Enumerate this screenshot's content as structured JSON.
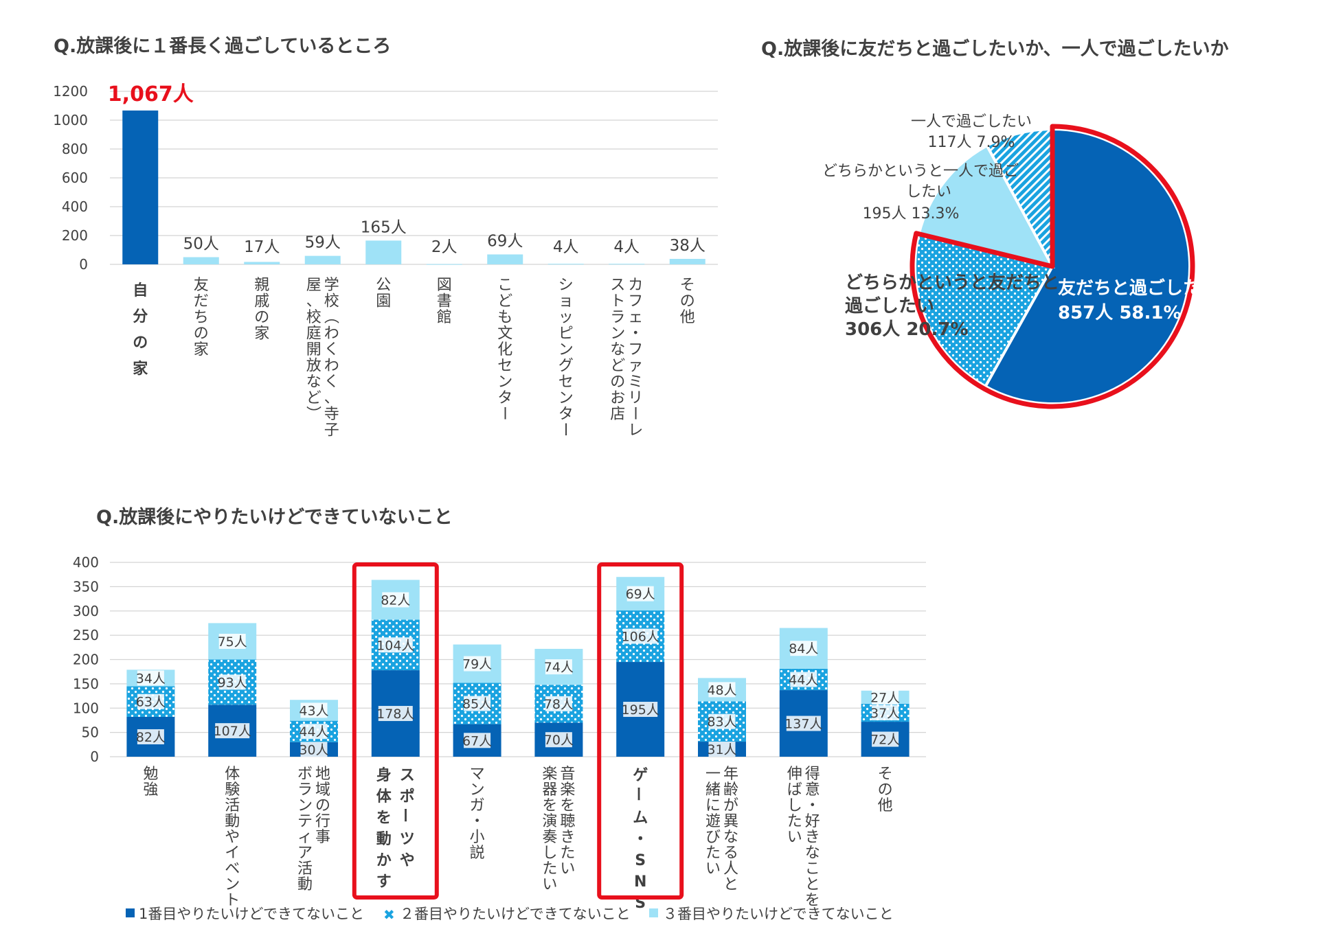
{
  "colors": {
    "dark_blue": "#0563b5",
    "mid_blue": "#1aa3e0",
    "light_blue": "#9fe2f7",
    "highlight_red": "#e8101c",
    "grid": "#d4d4d4",
    "text": "#404040"
  },
  "chart_data": [
    {
      "id": "where",
      "type": "bar",
      "title": "Q.放課後に１番長く過ごしているところ",
      "ylim": [
        0,
        1200
      ],
      "yticks": [
        0,
        200,
        400,
        600,
        800,
        1000,
        1200
      ],
      "categories": [
        "自分の家",
        "友だちの家",
        "親戚の家",
        "学校（わくわく、寺子屋、校庭開放など）",
        "公園",
        "図書館",
        "こども文化センター",
        "ショッピングセンター",
        "カフェ・ファミリーレストランなどのお店",
        "その他"
      ],
      "category_lines": [
        [
          "自分の家"
        ],
        [
          "友だちの家"
        ],
        [
          "親戚の家"
        ],
        [
          "学校（わくわく、寺子",
          "屋、校庭開放など）"
        ],
        [
          "公園"
        ],
        [
          "図書館"
        ],
        [
          "こども文化センター"
        ],
        [
          "ショッピングセンター"
        ],
        [
          "カフェ・ファミリーレ",
          "ストランなどのお店"
        ],
        [
          "その他"
        ]
      ],
      "values": [
        1067,
        50,
        17,
        59,
        165,
        2,
        69,
        4,
        4,
        38
      ],
      "labels": [
        "1,067人",
        "50人",
        "17人",
        "59人",
        "165人",
        "2人",
        "69人",
        "4人",
        "4人",
        "38人"
      ],
      "highlight_index": 0
    },
    {
      "id": "with_whom",
      "type": "pie",
      "title": "Q.放課後に友だちと過ごしたいか、一人で過ごしたいか",
      "slices": [
        {
          "label": "友だちと過ごしたい",
          "count": "857人",
          "percent": "58.1%",
          "value": 58.1,
          "style": "dark"
        },
        {
          "label": "どちらかというと友だちと過ごしたい",
          "count": "306人",
          "percent": "20.7%",
          "value": 20.7,
          "style": "dots"
        },
        {
          "label": "どちらかというと一人で過ごしたい",
          "count": "195人",
          "percent": "13.3%",
          "value": 13.3,
          "style": "light"
        },
        {
          "label": "一人で過ごしたい",
          "count": "117人",
          "percent": "7.9%",
          "value": 7.9,
          "style": "stripes"
        }
      ],
      "annotation_lines": {
        "slice0": [
          "友だちと過ごしたい",
          "857人  58.1%"
        ],
        "slice1": [
          "どちらかというと友だちと",
          "過ごしたい",
          "306人  20.7%"
        ],
        "slice2": [
          "どちらかというと一人で過ご",
          "したい",
          "195人  13.3%"
        ],
        "slice3": [
          "一人で過ごしたい",
          "117人  7.9%"
        ]
      }
    },
    {
      "id": "want_cannot",
      "type": "bar",
      "stacked": true,
      "title": "Q.放課後にやりたいけどできていないこと",
      "ylim": [
        0,
        400
      ],
      "yticks": [
        0,
        50,
        100,
        150,
        200,
        250,
        300,
        350,
        400
      ],
      "categories": [
        "勉強",
        "体験活動やイベント",
        "地域の行事ボランティア活動",
        "スポーツや身体を動かす",
        "マンガ・小説",
        "音楽を聴きたい楽器を演奏したい",
        "ゲーム・SNS",
        "年齢が異なる人と一緒に遊びたい",
        "得意・好きなことを伸ばしたい",
        "その他"
      ],
      "category_lines": [
        [
          "勉強"
        ],
        [
          "体験活動やイベント"
        ],
        [
          "地域の行事",
          "ボランティア活動"
        ],
        [
          "スポーツや",
          "身体を動かす"
        ],
        [
          "マンガ・小説"
        ],
        [
          "音楽を聴きたい",
          "楽器を演奏したい"
        ],
        [
          "ゲーム・SNS"
        ],
        [
          "年齢が異なる人と",
          "一緒に遊びたい"
        ],
        [
          "得意・好きなことを",
          "伸ばしたい"
        ],
        [
          "その他"
        ]
      ],
      "highlight_indices": [
        3,
        6
      ],
      "series": [
        {
          "name": "1番目やりたいけどできてないこと",
          "style": "dark",
          "values": [
            82,
            107,
            30,
            178,
            67,
            70,
            195,
            31,
            137,
            72
          ],
          "labels": [
            "82人",
            "107人",
            "30人",
            "178人",
            "67人",
            "70人",
            "195人",
            "31人",
            "137人",
            "72人"
          ]
        },
        {
          "name": "２番目やりたいけどできてないこと",
          "style": "dots",
          "values": [
            63,
            93,
            44,
            104,
            85,
            78,
            106,
            83,
            44,
            37
          ],
          "labels": [
            "63人",
            "93人",
            "44人",
            "104人",
            "85人",
            "78人",
            "106人",
            "83人",
            "44人",
            "37人"
          ]
        },
        {
          "name": "３番目やりたいけどできてないこと",
          "style": "light",
          "values": [
            34,
            75,
            43,
            82,
            79,
            74,
            69,
            48,
            84,
            27
          ],
          "labels": [
            "34人",
            "75人",
            "43人",
            "82人",
            "79人",
            "74人",
            "69人",
            "48人",
            "84人",
            "27人"
          ]
        }
      ]
    }
  ]
}
